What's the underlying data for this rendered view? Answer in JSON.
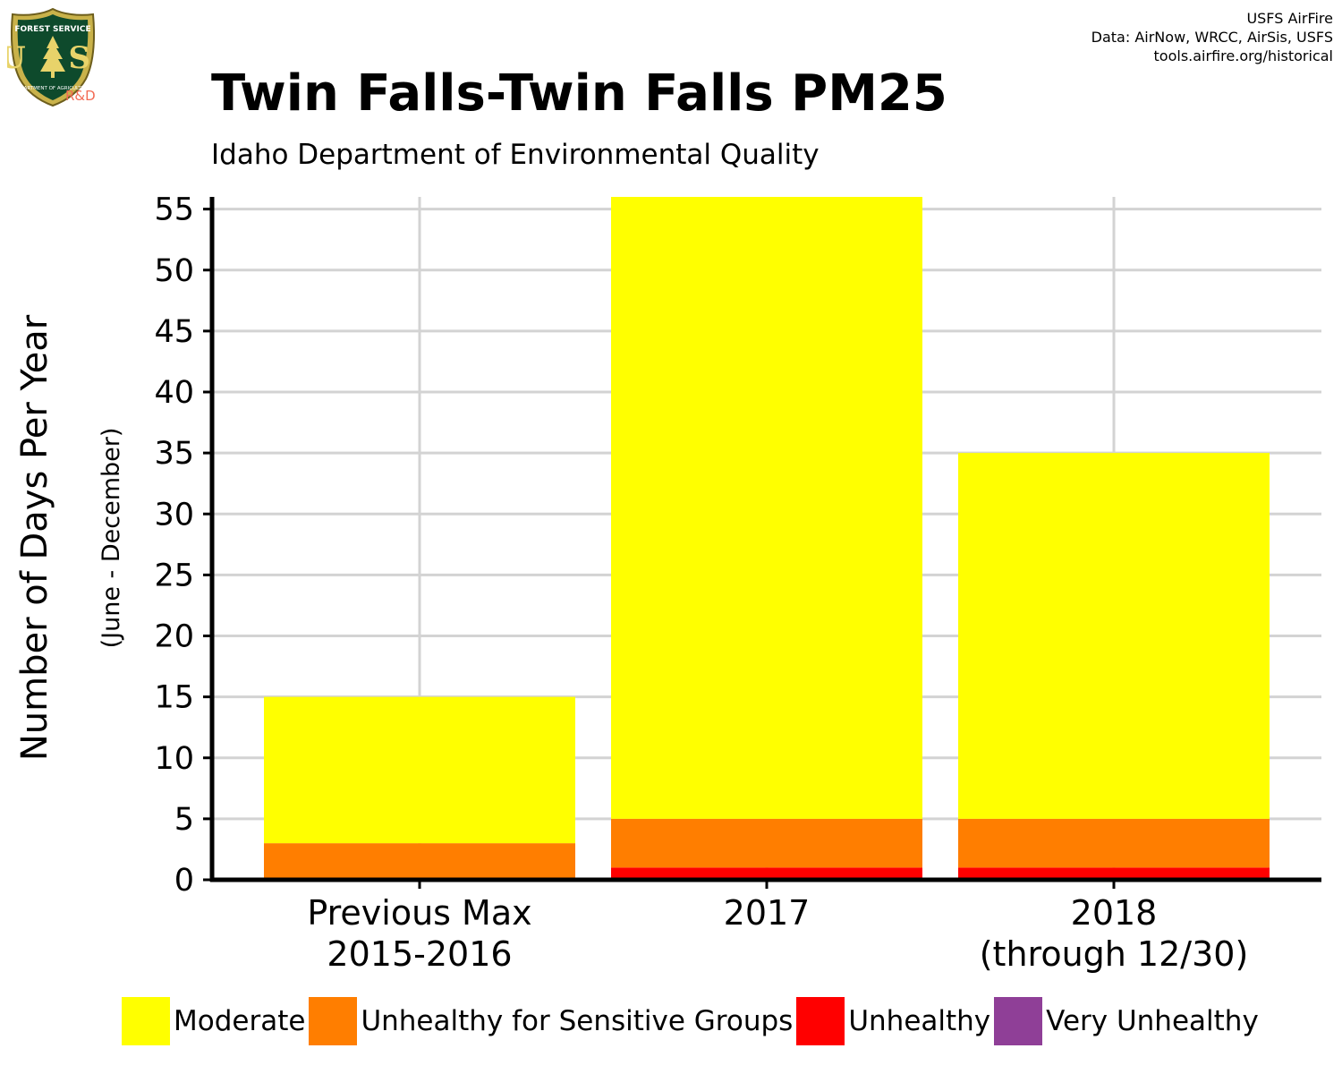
{
  "logo": {
    "arc_text": "FOREST SERVICE",
    "center_text": "U S",
    "bottom_text": "DEPARTMENT OF AGRICULTURE",
    "tag": "R&D"
  },
  "credits": {
    "line1": "USFS AirFire",
    "line2": "Data: AirNow, WRCC, AirSis, USFS",
    "line3": "tools.airfire.org/historical"
  },
  "chart_data": {
    "type": "bar",
    "stacked": true,
    "title": "Twin Falls-Twin Falls PM25",
    "subtitle": "Idaho Department of Environmental Quality",
    "ylabel": "Number of Days Per Year",
    "ylabel2": "(June - December)",
    "xlabel": "",
    "ylim": [
      0,
      56
    ],
    "yticks": [
      0,
      5,
      10,
      15,
      20,
      25,
      30,
      35,
      40,
      45,
      50,
      55
    ],
    "grid": true,
    "legend_position": "bottom",
    "categories": [
      [
        "Previous Max",
        "2015-2016"
      ],
      [
        "2017"
      ],
      [
        "2018",
        "(through 12/30)"
      ]
    ],
    "series": [
      {
        "name": "Moderate",
        "color": "#ffff00",
        "values": [
          12,
          51,
          30
        ]
      },
      {
        "name": "Unhealthy for Sensitive Groups",
        "color": "#ff7e00",
        "values": [
          3,
          4,
          4
        ]
      },
      {
        "name": "Unhealthy",
        "color": "#ff0000",
        "values": [
          0,
          1,
          1
        ]
      },
      {
        "name": "Very Unhealthy",
        "color": "#8f3f97",
        "values": [
          0,
          0,
          0
        ]
      }
    ]
  }
}
